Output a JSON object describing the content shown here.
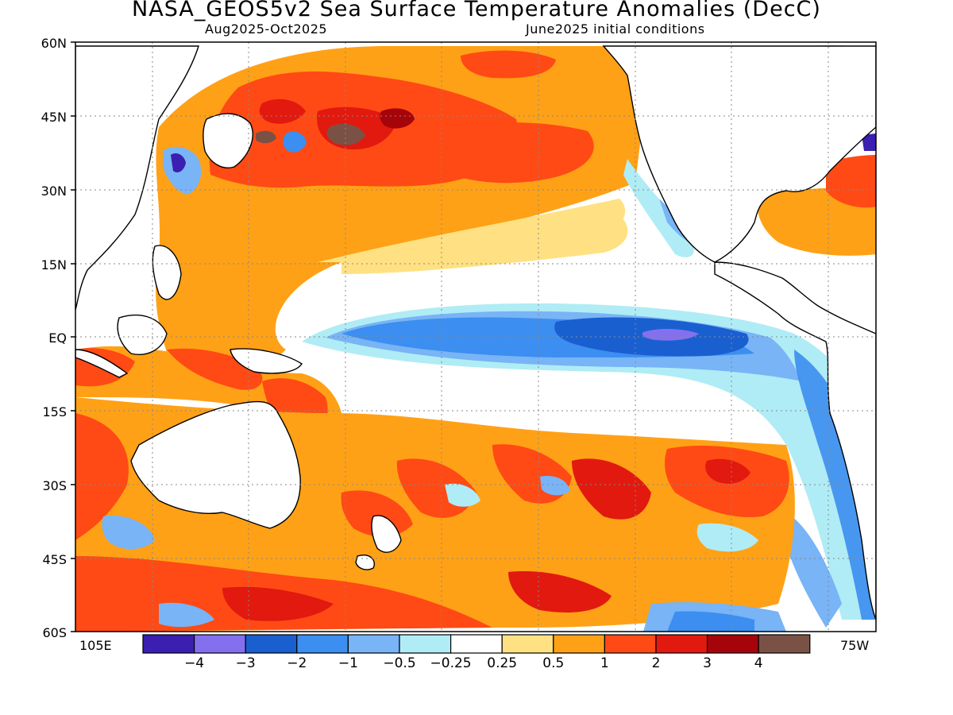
{
  "title": "NASA_GEOS5v2 Sea Surface Temperature Anomalies (DecC)",
  "subtitle_left": "Aug2025-Oct2025",
  "subtitle_right": "June2025 initial conditions",
  "lat_labels": [
    "60N",
    "45N",
    "30N",
    "15N",
    "EQ",
    "15S",
    "30S",
    "45S",
    "60S"
  ],
  "lon_left_label": "105E",
  "lon_right_label": "75W",
  "colorbar": {
    "colors": [
      "#3a1fb0",
      "#8470ee",
      "#1a5fd0",
      "#3c8ef0",
      "#78b4f6",
      "#b0ecf5",
      "#ffffff",
      "#ffe183",
      "#ffa116",
      "#ff4a15",
      "#e2190f",
      "#a5050a",
      "#7a5245"
    ],
    "tick_labels": [
      "-4",
      "-3",
      "-2",
      "-1",
      "-0.5",
      "-0.25",
      "0.25",
      "0.5",
      "1",
      "2",
      "3",
      "4"
    ]
  },
  "chart_data": {
    "type": "heatmap",
    "title": "NASA_GEOS5v2 Sea Surface Temperature Anomalies (DecC)",
    "subtitle": "Aug2025-Oct2025 | June2025 initial conditions",
    "units": "DecC",
    "lat_range": [
      "60S",
      "60N"
    ],
    "lon_range": [
      "105E",
      "75W"
    ],
    "color_levels": [
      -4,
      -3,
      -2,
      -1,
      -0.5,
      -0.25,
      0.25,
      0.5,
      1,
      2,
      3,
      4
    ]
  }
}
